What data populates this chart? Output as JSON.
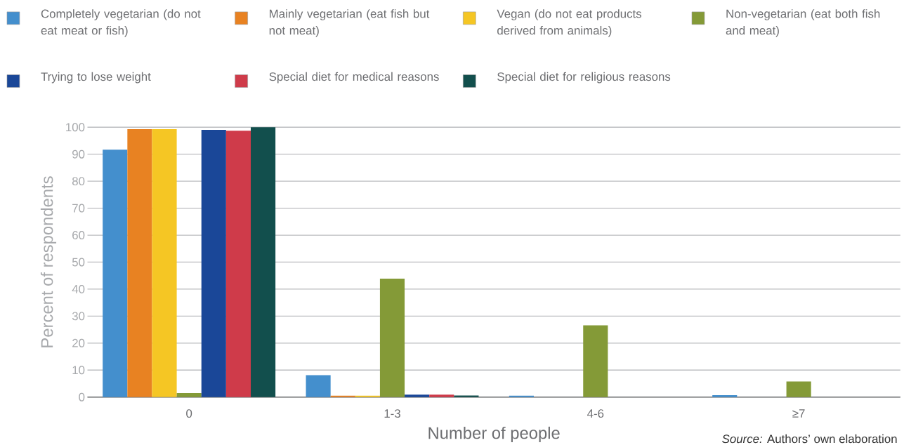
{
  "chart_data": {
    "type": "bar",
    "xlabel": "Number of people",
    "ylabel": "Percent of respondents",
    "categories": [
      "0",
      "1-3",
      "4-6",
      "≥7"
    ],
    "series": [
      {
        "name": "Completely vegetarian (do not eat meat or fish)",
        "color": "#448fcd",
        "values": [
          91.7,
          8.1,
          0.5,
          0.7
        ]
      },
      {
        "name": "Mainly vegetarian (eat fish but not meat)",
        "color": "#e88222",
        "values": [
          99.3,
          0.5,
          0,
          0
        ]
      },
      {
        "name": "Vegan (do not eat products derived from animals)",
        "color": "#f5c624",
        "values": [
          99.3,
          0.5,
          0,
          0
        ]
      },
      {
        "name": "Non-vegetarian (eat both fish and meat)",
        "color": "#849a37",
        "values": [
          1.5,
          43.9,
          26.6,
          5.8
        ]
      },
      {
        "name": "Trying to lose weight",
        "color": "#1a4798",
        "values": [
          99,
          0.9,
          0,
          0
        ]
      },
      {
        "name": "Special diet for medical reasons",
        "color": "#cf3b4a",
        "values": [
          98.7,
          0.9,
          0,
          0
        ]
      },
      {
        "name": "Special diet for religious reasons",
        "color": "#124f4d",
        "values": [
          100,
          0.6,
          0,
          0
        ]
      }
    ],
    "ylim": [
      0,
      100
    ],
    "yticks": [
      0,
      10,
      20,
      30,
      40,
      50,
      60,
      70,
      80,
      90,
      100
    ],
    "grid": "y",
    "legend": "top",
    "annotations": [
      "*Source:* Authors’ own elaboration"
    ]
  }
}
